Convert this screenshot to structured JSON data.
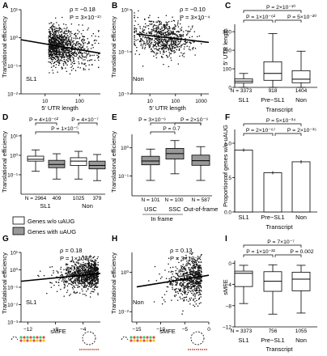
{
  "figure": {
    "panels": [
      {
        "id": "A",
        "letter": "A",
        "corner_label": "SL1",
        "xlabel": "5′ UTR length",
        "ylabel": "Translational efficiency",
        "stats": [
          "ρ = −0.18",
          "P = 3×10⁻²⁷"
        ],
        "xticks": [
          {
            "v": 10,
            "label": "10"
          },
          {
            "v": 100,
            "label": "100"
          }
        ],
        "yticks": [
          {
            "v": 0.01,
            "label": "10⁻²"
          },
          {
            "v": 0.1,
            "label": "10⁻¹"
          },
          {
            "v": 1,
            "label": "10⁰"
          },
          {
            "v": 10,
            "label": "10¹"
          }
        ]
      },
      {
        "id": "B",
        "letter": "B",
        "corner_label": "Non",
        "xlabel": "5′ UTR length",
        "ylabel": "Translational efficiency",
        "stats": [
          "ρ = −0.10",
          "P = 3×10⁻⁴"
        ],
        "xticks": [
          {
            "v": 10,
            "label": "10"
          },
          {
            "v": 100,
            "label": "100"
          },
          {
            "v": 1000,
            "label": "1000"
          }
        ],
        "yticks": [
          {
            "v": 0.001,
            "label": "10⁻³"
          },
          {
            "v": 0.1,
            "label": "10⁻¹"
          },
          {
            "v": 10,
            "label": "10¹"
          }
        ]
      },
      {
        "id": "C",
        "letter": "C",
        "xlabel": "Transcript",
        "ylabel": "5′ UTR length",
        "stats": [
          "P = 2×10⁻¹⁰",
          "P = 1×10⁻⁶²",
          "P = 5×10⁻²⁰"
        ],
        "categories": [
          "SL1",
          "Pre−SL1",
          "Non"
        ],
        "ns": [
          "N = 3373",
          "918",
          "1404"
        ],
        "yticks": [
          {
            "v": 0,
            "label": "0"
          },
          {
            "v": 100,
            "label": "100"
          },
          {
            "v": 200,
            "label": "200"
          },
          {
            "v": 300,
            "label": "300"
          }
        ]
      },
      {
        "id": "D",
        "letter": "D",
        "ylabel": "Translational efficiency",
        "stats": [
          "P = 4×10⁻⁶²",
          "P = 4×10⁻⁷",
          "P = 1×10⁻⁵"
        ],
        "groups": [
          "SL1",
          "Non"
        ],
        "ns": [
          "N = 2964",
          "409",
          "1025",
          "379"
        ],
        "yticks": [
          {
            "v": 0.1,
            "label": "10⁻¹"
          },
          {
            "v": 1,
            "label": "10⁰"
          },
          {
            "v": 10,
            "label": "10¹"
          }
        ]
      },
      {
        "id": "E",
        "letter": "E",
        "ylabel": "Translational efficiency",
        "stats": [
          "P = 3×10⁻⁶",
          "P = 2×10⁻⁹",
          "P = 0.7"
        ],
        "categories": [
          "USC",
          "SSC",
          "Out-of-frame"
        ],
        "group_label": "In frame",
        "ns": [
          "N = 101",
          "N = 100",
          "N = 587"
        ],
        "yticks": [
          {
            "v": 0.1,
            "label": "10⁻¹"
          },
          {
            "v": 1,
            "label": "10⁰"
          }
        ]
      },
      {
        "id": "F",
        "letter": "F",
        "xlabel": "Transcript",
        "ylabel": "Proportion of genes w/o uAUG",
        "stats": [
          "P = 5×10⁻³⁴",
          "P = 2×10⁻⁶⁷",
          "P = 2×10⁻¹⁵"
        ],
        "categories": [
          "SL1",
          "Pre−SL1",
          "Non"
        ],
        "yticks": [
          {
            "v": 0,
            "label": "0.0"
          },
          {
            "v": 0.5,
            "label": "0.5"
          },
          {
            "v": 1,
            "label": "1.0"
          }
        ]
      },
      {
        "id": "G",
        "letter": "G",
        "corner_label": "SL1",
        "xlabel": "sMFE",
        "ylabel": "Translational efficiency",
        "stats": [
          "ρ = 0.18",
          "P = 1×10⁻²⁵"
        ],
        "xticks": [
          {
            "v": -12,
            "label": "−12"
          },
          {
            "v": -8,
            "label": "−8"
          },
          {
            "v": -4,
            "label": "−4"
          }
        ],
        "yticks": [
          {
            "v": 0.001,
            "label": "10⁻³"
          },
          {
            "v": 0.01,
            "label": "10⁻²"
          },
          {
            "v": 0.1,
            "label": "10⁻¹"
          },
          {
            "v": 1,
            "label": "10⁰"
          },
          {
            "v": 10,
            "label": "10¹"
          }
        ]
      },
      {
        "id": "H",
        "letter": "H",
        "corner_label": "Non",
        "xlabel": "sMFE",
        "ylabel": "Translational efficiency",
        "stats": [
          "ρ = 0.13",
          "P = 3×10⁻⁵"
        ],
        "xticks": [
          {
            "v": -15,
            "label": "−15"
          },
          {
            "v": -10,
            "label": "−10"
          },
          {
            "v": -5,
            "label": "−5"
          },
          {
            "v": 0,
            "label": "0"
          }
        ],
        "yticks": [
          {
            "v": 0.01,
            "label": "10⁻²"
          },
          {
            "v": 1,
            "label": "10⁰"
          }
        ]
      },
      {
        "id": "I",
        "letter": "I",
        "xlabel": "Transcript",
        "ylabel": "sMFE",
        "stats": [
          "P = 7×10⁻⁷",
          "P = 1×10⁻²²",
          "P = 0.002"
        ],
        "categories": [
          "SL1",
          "Pre−SL1",
          "Non"
        ],
        "ns": [
          "N = 3373",
          "756",
          "1055"
        ],
        "yticks": [
          {
            "v": -12,
            "label": "−12"
          },
          {
            "v": -8,
            "label": "−8"
          },
          {
            "v": -4,
            "label": "−4"
          },
          {
            "v": 0,
            "label": "0"
          }
        ]
      }
    ],
    "legend": [
      {
        "label": "Genes w/o uAUG",
        "color": "#ffffff"
      },
      {
        "label": "Genes with uAUG",
        "color": "#999999"
      }
    ]
  },
  "chart_data": [
    {
      "panel": "A",
      "type": "scatter",
      "title": "",
      "xlabel": "5′ UTR length",
      "ylabel": "Translational efficiency",
      "x_scale": "log",
      "y_scale": "log",
      "xlim": [
        2,
        400
      ],
      "ylim": [
        0.01,
        10
      ],
      "series": [
        {
          "name": "SL1",
          "n_points": 3373
        }
      ],
      "annotations": {
        "rho": -0.18,
        "P": "3×10⁻²⁷"
      },
      "trend": {
        "x": [
          2,
          400
        ],
        "y": [
          0.85,
          0.28
        ]
      }
    },
    {
      "panel": "B",
      "type": "scatter",
      "xlabel": "5′ UTR length",
      "ylabel": "Translational efficiency",
      "x_scale": "log",
      "y_scale": "log",
      "xlim": [
        2,
        2000
      ],
      "ylim": [
        0.001,
        10
      ],
      "series": [
        {
          "name": "Non",
          "n_points": 1404
        }
      ],
      "annotations": {
        "rho": -0.1,
        "P": "3×10⁻⁴"
      },
      "trend": {
        "x": [
          3,
          2000
        ],
        "y": [
          0.7,
          0.28
        ]
      }
    },
    {
      "panel": "C",
      "type": "box",
      "xlabel": "Transcript",
      "ylabel": "5′ UTR length",
      "ylim": [
        0,
        340
      ],
      "categories": [
        "SL1",
        "Pre−SL1",
        "Non"
      ],
      "n": [
        3373,
        918,
        1404
      ],
      "boxes": [
        {
          "whislo": 0,
          "q1": 24,
          "med": 34,
          "q3": 46,
          "whishi": 75
        },
        {
          "whislo": 0,
          "q1": 38,
          "med": 75,
          "q3": 138,
          "whishi": 290
        },
        {
          "whislo": 0,
          "q1": 25,
          "med": 44,
          "q3": 90,
          "whishi": 195
        }
      ],
      "comparisons": [
        {
          "pair": [
            "SL1",
            "Non"
          ],
          "P": "2×10⁻¹⁰"
        },
        {
          "pair": [
            "SL1",
            "Pre−SL1"
          ],
          "P": "1×10⁻⁶²"
        },
        {
          "pair": [
            "Pre−SL1",
            "Non"
          ],
          "P": "5×10⁻²⁰"
        }
      ]
    },
    {
      "panel": "D",
      "type": "box",
      "ylabel": "Translational efficiency",
      "y_scale": "log",
      "ylim": [
        0.01,
        12
      ],
      "groups": [
        "SL1",
        "Non"
      ],
      "series": [
        {
          "name": "Genes w/o uAUG",
          "n": [
            2964,
            1025
          ],
          "boxes": [
            {
              "whislo": 0.15,
              "q1": 0.5,
              "med": 0.62,
              "q3": 0.9,
              "whishi": 1.9
            },
            {
              "whislo": 0.06,
              "q1": 0.3,
              "med": 0.5,
              "q3": 0.75,
              "whishi": 1.6
            }
          ]
        },
        {
          "name": "Genes with uAUG",
          "n": [
            409,
            379
          ],
          "boxes": [
            {
              "whislo": 0.06,
              "q1": 0.23,
              "med": 0.34,
              "q3": 0.55,
              "whishi": 1.2
            },
            {
              "whislo": 0.05,
              "q1": 0.2,
              "med": 0.3,
              "q3": 0.5,
              "whishi": 1.1
            }
          ]
        }
      ],
      "comparisons": [
        {
          "P": "4×10⁻⁶²"
        },
        {
          "P": "4×10⁻⁷"
        },
        {
          "P": "1×10⁻⁵"
        }
      ]
    },
    {
      "panel": "E",
      "type": "box",
      "ylabel": "Translational efficiency",
      "y_scale": "log",
      "ylim": [
        0.02,
        3
      ],
      "categories": [
        "USC",
        "SSC",
        "Out-of-frame"
      ],
      "n": [
        101,
        100,
        587
      ],
      "boxes": [
        {
          "whislo": 0.07,
          "q1": 0.25,
          "med": 0.34,
          "q3": 0.5,
          "whishi": 0.9
        },
        {
          "whislo": 0.12,
          "q1": 0.4,
          "med": 0.62,
          "q3": 0.95,
          "whishi": 1.8
        },
        {
          "whislo": 0.07,
          "q1": 0.24,
          "med": 0.35,
          "q3": 0.55,
          "whishi": 1.1
        }
      ],
      "comparisons": [
        {
          "pair": [
            "USC",
            "Out-of-frame"
          ],
          "P": "3×10⁻⁶"
        },
        {
          "pair": [
            "SSC",
            "Out-of-frame"
          ],
          "P": "2×10⁻⁹"
        },
        {
          "pair": [
            "USC",
            "SSC"
          ],
          "P": "0.7"
        }
      ]
    },
    {
      "panel": "F",
      "type": "bar",
      "xlabel": "Transcript",
      "ylabel": "Proportion of genes w/o uAUG",
      "ylim": [
        0,
        1.2
      ],
      "categories": [
        "SL1",
        "Pre−SL1",
        "Non"
      ],
      "values": [
        0.9,
        0.57,
        0.73
      ],
      "comparisons": [
        {
          "pair": [
            "SL1",
            "Non"
          ],
          "P": "5×10⁻³⁴"
        },
        {
          "pair": [
            "SL1",
            "Pre−SL1"
          ],
          "P": "2×10⁻⁶⁷"
        },
        {
          "pair": [
            "Pre−SL1",
            "Non"
          ],
          "P": "2×10⁻¹⁵"
        }
      ]
    },
    {
      "panel": "G",
      "type": "scatter",
      "xlabel": "sMFE",
      "ylabel": "Translational efficiency",
      "y_scale": "log",
      "xlim": [
        -13,
        -1.5
      ],
      "ylim": [
        0.001,
        10
      ],
      "series": [
        {
          "name": "SL1",
          "n_points": 3373
        }
      ],
      "annotations": {
        "rho": 0.18,
        "P": "1×10⁻²⁵"
      },
      "trend": {
        "x": [
          -13,
          -1.5
        ],
        "y": [
          0.22,
          0.62
        ]
      }
    },
    {
      "panel": "H",
      "type": "scatter",
      "xlabel": "sMFE",
      "ylabel": "Translational efficiency",
      "y_scale": "log",
      "xlim": [
        -16,
        0
      ],
      "ylim": [
        0.003,
        10
      ],
      "series": [
        {
          "name": "Non",
          "n_points": 1055
        }
      ],
      "annotations": {
        "rho": 0.13,
        "P": "3×10⁻⁵"
      },
      "trend": {
        "x": [
          -15,
          0
        ],
        "y": [
          0.18,
          0.7
        ]
      }
    },
    {
      "panel": "I",
      "type": "box",
      "xlabel": "Transcript",
      "ylabel": "sMFE",
      "ylim": [
        -12,
        0.5
      ],
      "categories": [
        "SL1",
        "Pre−SL1",
        "Non"
      ],
      "n": [
        3373,
        756,
        1055
      ],
      "boxes": [
        {
          "whislo": -7.6,
          "q1": -4.4,
          "med": -1.9,
          "q3": -1.5,
          "whishi": -0.4
        },
        {
          "whislo": -9.6,
          "q1": -5.3,
          "med": -3.4,
          "q3": -1.6,
          "whishi": -0.3
        },
        {
          "whislo": -9.4,
          "q1": -5.2,
          "med": -3.0,
          "q3": -1.7,
          "whishi": -0.4
        }
      ],
      "comparisons": [
        {
          "pair": [
            "SL1",
            "Non"
          ],
          "P": "7×10⁻⁷"
        },
        {
          "pair": [
            "SL1",
            "Pre−SL1"
          ],
          "P": "1×10⁻²²"
        },
        {
          "pair": [
            "Pre−SL1",
            "Non"
          ],
          "P": "0.002"
        }
      ]
    }
  ]
}
